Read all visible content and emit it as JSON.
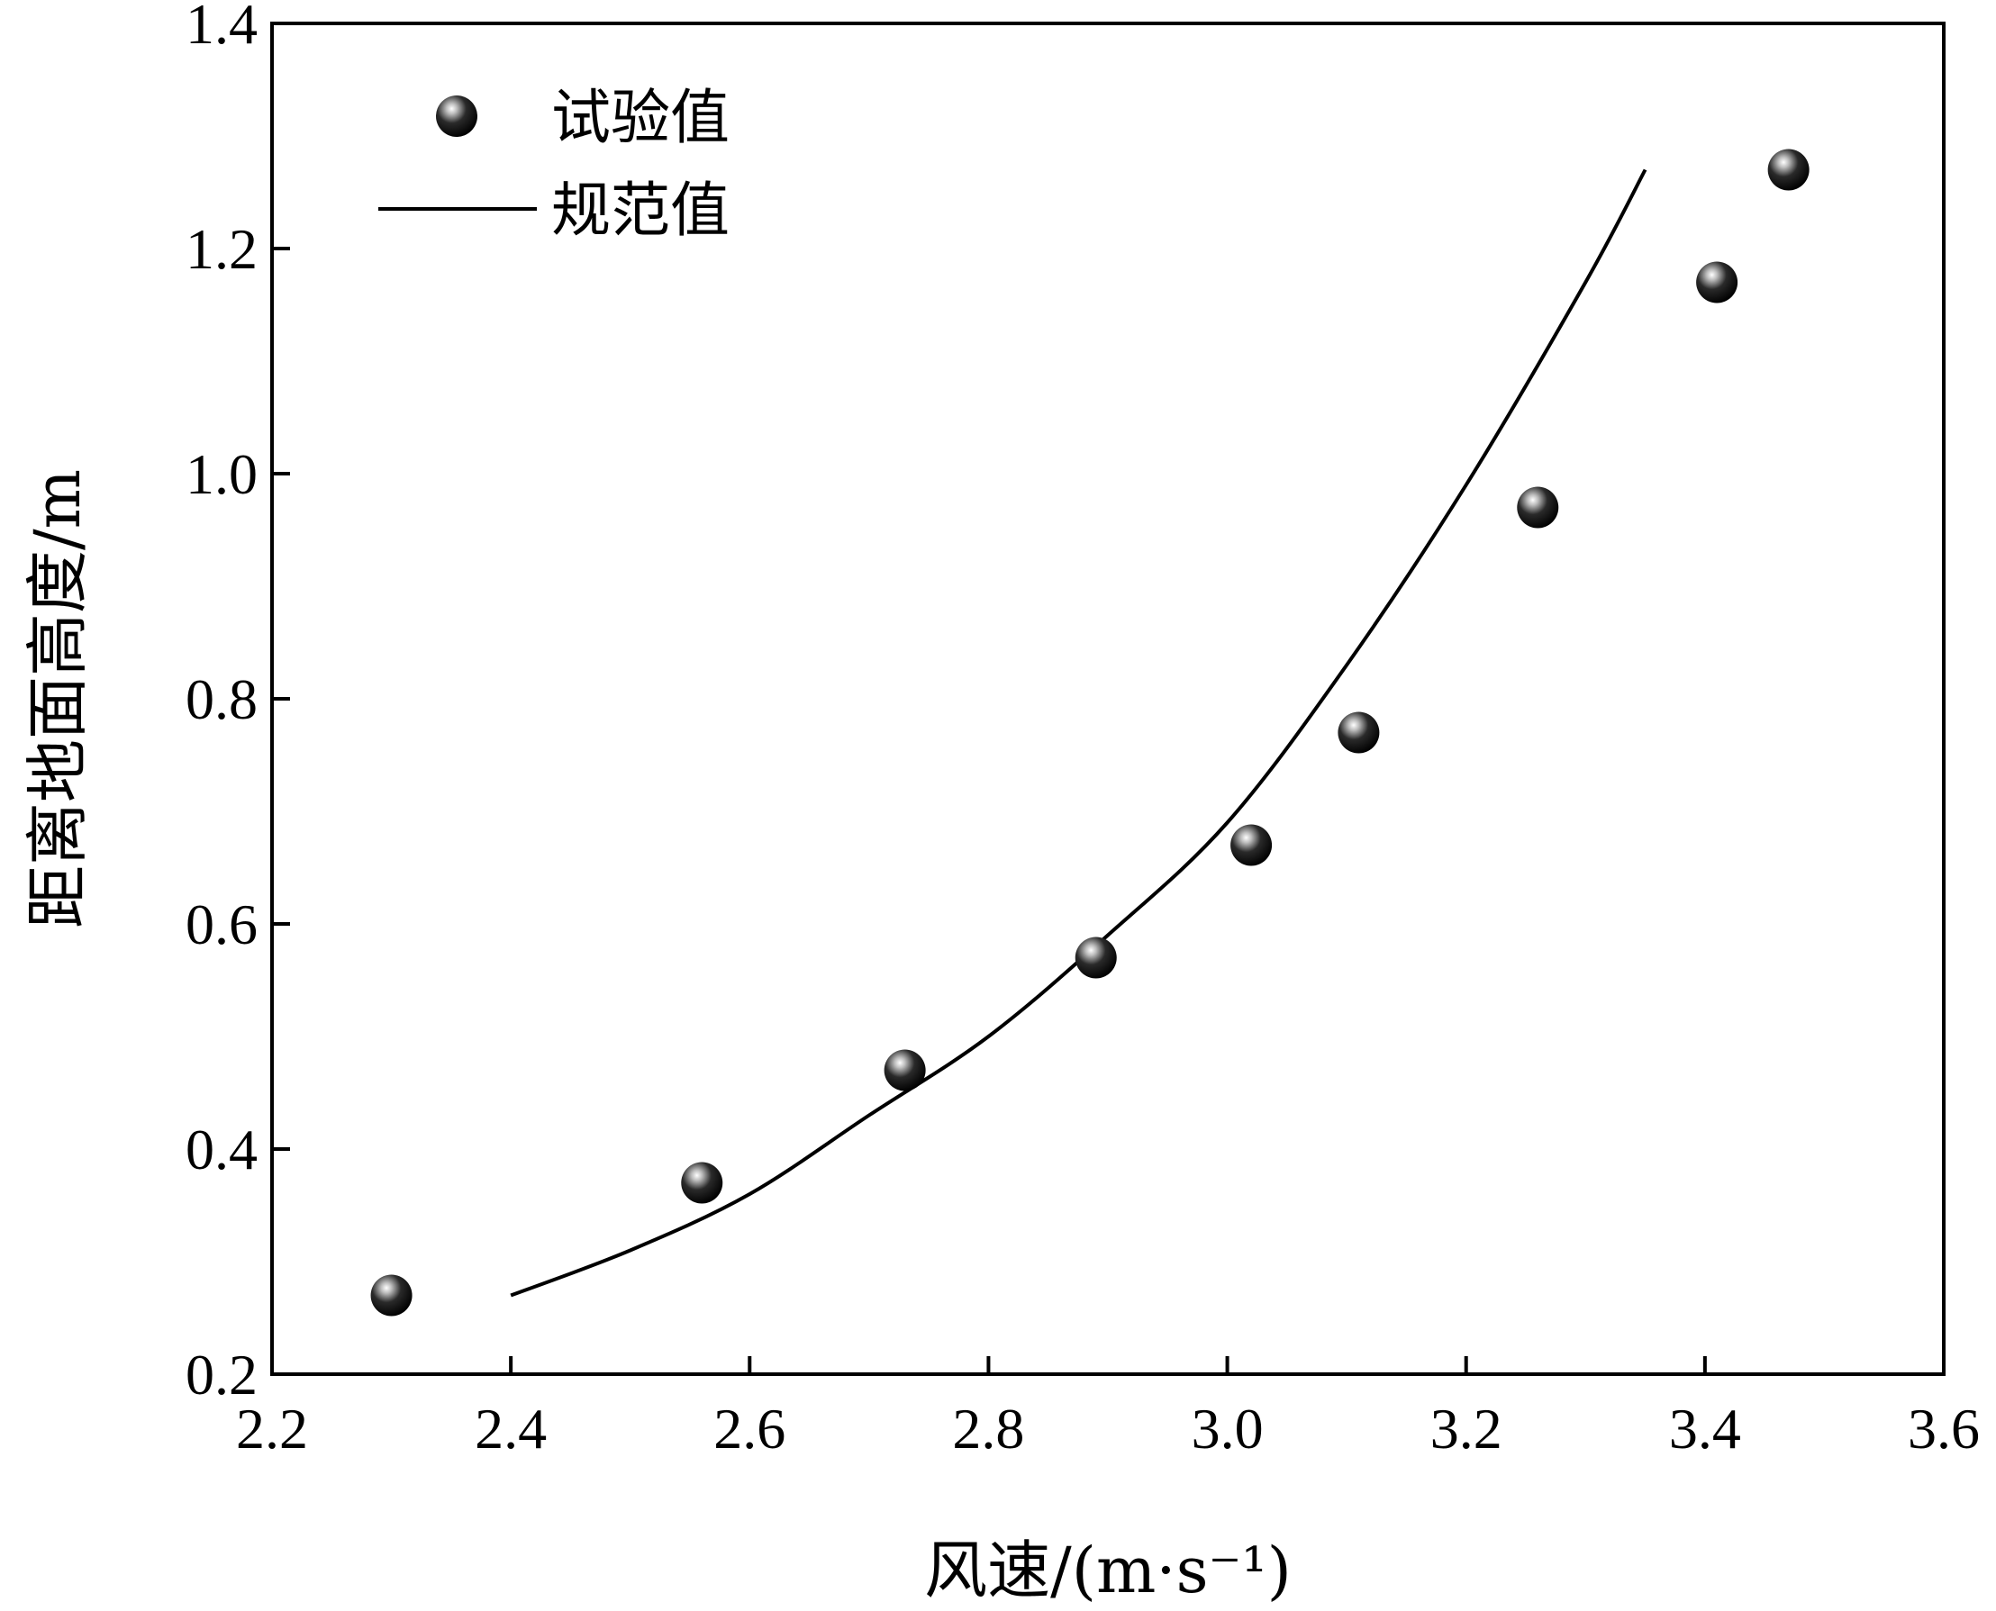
{
  "chart_data": {
    "type": "scatter",
    "xlabel": "风速/(m·s⁻¹)",
    "ylabel": "距离地面高度/m",
    "xlim": [
      2.2,
      3.6
    ],
    "ylim": [
      0.2,
      1.4
    ],
    "xticks": [
      "2.2",
      "2.4",
      "2.6",
      "2.8",
      "3.0",
      "3.2",
      "3.4",
      "3.6"
    ],
    "yticks": [
      "0.2",
      "0.4",
      "0.6",
      "0.8",
      "1.0",
      "1.2",
      "1.4"
    ],
    "grid": false,
    "legend_position": "top-left",
    "series": [
      {
        "name": "试验值",
        "kind": "scatter",
        "x": [
          2.3,
          2.56,
          2.73,
          2.89,
          3.02,
          3.11,
          3.26,
          3.41,
          3.47
        ],
        "y": [
          0.27,
          0.37,
          0.47,
          0.57,
          0.67,
          0.77,
          0.97,
          1.17,
          1.27
        ]
      },
      {
        "name": "规范值",
        "kind": "line",
        "x": [
          2.4,
          2.5,
          2.6,
          2.7,
          2.8,
          2.9,
          3.0,
          3.1,
          3.2,
          3.3,
          3.35
        ],
        "y": [
          0.27,
          0.31,
          0.36,
          0.43,
          0.5,
          0.59,
          0.69,
          0.83,
          0.99,
          1.17,
          1.27
        ]
      }
    ]
  }
}
